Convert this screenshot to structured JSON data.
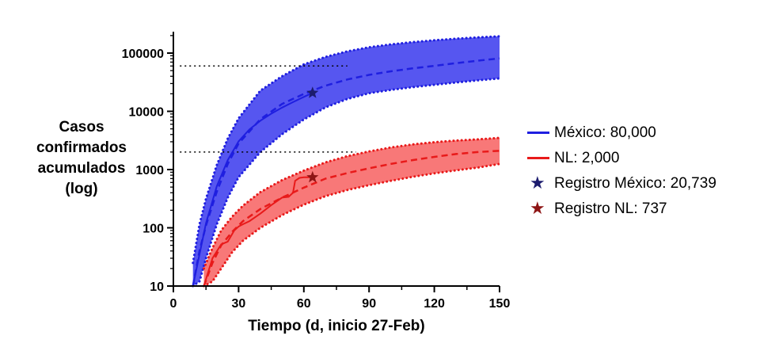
{
  "chart_data": {
    "type": "line",
    "xlabel": "Tiempo (d, inicio 27-Feb)",
    "ylabel_lines": [
      "Casos",
      "confirmados",
      "acumulados",
      "(log)"
    ],
    "x_ticks": [
      "0",
      "30",
      "60",
      "90",
      "120",
      "150"
    ],
    "y_ticks": [
      "10",
      "100",
      "1000",
      "10000",
      "100000"
    ],
    "xlim": [
      0,
      150
    ],
    "ylim": [
      10,
      200000
    ],
    "y_scale": "log",
    "grid": false,
    "legend_position": "right",
    "colors": {
      "mexico": "#1f1fe0",
      "mexico_band": "#5656f0",
      "nl": "#e81a1a",
      "nl_band": "#f87878",
      "mexico_star": "#1c1c6e",
      "nl_star": "#8e1515"
    },
    "reference_lines": [
      {
        "y": 60000,
        "x_range": [
          3,
          80
        ],
        "style": "dotted"
      },
      {
        "y": 2000,
        "x_range": [
          3,
          84
        ],
        "style": "dotted"
      }
    ],
    "series": [
      {
        "name": "México: 80,000",
        "style": "dashed",
        "x": [
          9,
          12,
          15,
          20,
          25,
          30,
          40,
          50,
          60,
          70,
          80,
          90,
          100,
          110,
          120,
          130,
          140,
          150
        ],
        "values": [
          10,
          40,
          110,
          420,
          1250,
          2800,
          7300,
          13400,
          19900,
          27600,
          35200,
          42200,
          48700,
          54600,
          60400,
          67100,
          74000,
          81100
        ],
        "band_lower": [
          10,
          12,
          30,
          115,
          330,
          740,
          2000,
          4050,
          7250,
          11700,
          16300,
          20400,
          23300,
          26000,
          28600,
          31300,
          34000,
          36700
        ],
        "band_upper": [
          25,
          115,
          315,
          1200,
          3400,
          7600,
          22700,
          40000,
          64000,
          86000,
          107000,
          126000,
          141000,
          154000,
          166000,
          177000,
          186000,
          194000
        ]
      },
      {
        "name": "NL: 2,000",
        "style": "dashed",
        "x": [
          14,
          18,
          22,
          27,
          32,
          40,
          50,
          60,
          70,
          80,
          90,
          100,
          110,
          120,
          130,
          140,
          150
        ],
        "values": [
          10,
          25,
          50,
          85,
          130,
          210,
          330,
          490,
          700,
          870,
          1050,
          1250,
          1450,
          1650,
          1850,
          2000,
          2100
        ],
        "band_lower": [
          10,
          12,
          20,
          38,
          60,
          100,
          165,
          250,
          350,
          445,
          540,
          640,
          750,
          860,
          970,
          1080,
          1250
        ],
        "band_upper": [
          20,
          45,
          90,
          155,
          240,
          410,
          660,
          960,
          1330,
          1700,
          2050,
          2400,
          2700,
          2950,
          3150,
          3300,
          3500
        ]
      },
      {
        "name": "Registro México",
        "style": "solid",
        "x": [
          9,
          12,
          15,
          20,
          25,
          30,
          35,
          40,
          45,
          50,
          55,
          60,
          64
        ],
        "values": [
          10,
          35,
          120,
          520,
          1450,
          3050,
          4900,
          6900,
          9100,
          11600,
          14400,
          17700,
          20739
        ]
      },
      {
        "name": "Registro NL",
        "style": "solid",
        "x": [
          14,
          18,
          22,
          25,
          28,
          30,
          32,
          35,
          40,
          45,
          50,
          53,
          55,
          56,
          58,
          60,
          62,
          64
        ],
        "values": [
          10,
          30,
          52,
          58,
          90,
          105,
          115,
          130,
          175,
          245,
          330,
          340,
          400,
          640,
          720,
          735,
          740,
          737
        ]
      }
    ],
    "markers": [
      {
        "name": "Registro México: 20,739",
        "x": 64,
        "y": 20739,
        "symbol": "star"
      },
      {
        "name": "Registro NL: 737",
        "x": 64,
        "y": 737,
        "symbol": "star"
      }
    ]
  },
  "legend": [
    {
      "label": "México: 80,000",
      "kind": "line",
      "color": "#1f1fe0"
    },
    {
      "label": "NL: 2,000",
      "kind": "line",
      "color": "#e81a1a"
    },
    {
      "label": "Registro México: 20,739",
      "kind": "star",
      "color": "#1c1c6e"
    },
    {
      "label": "Registro NL: 737",
      "kind": "star",
      "color": "#8e1515"
    }
  ]
}
